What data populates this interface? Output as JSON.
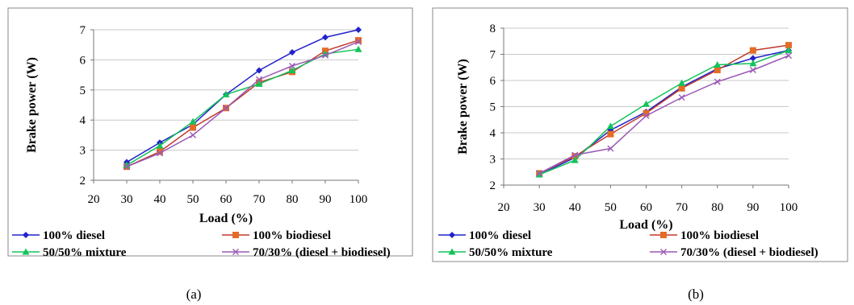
{
  "charts": [
    {
      "id": "a",
      "caption": "(a)",
      "chart_data": {
        "type": "line",
        "x": [
          30,
          40,
          50,
          60,
          70,
          80,
          90,
          100
        ],
        "xlim": [
          20,
          100
        ],
        "ylim": [
          2,
          7
        ],
        "xticks": [
          20,
          30,
          40,
          50,
          60,
          70,
          80,
          90,
          100
        ],
        "yticks": [
          2,
          3,
          4,
          5,
          6,
          7
        ],
        "xlabel": "Load (%)",
        "ylabel": "Brake power (W)",
        "grid": "horizontal",
        "legend": "bottom",
        "series": [
          {
            "name": "100% diesel",
            "color": "#2222cc",
            "marker": "diamond",
            "values": [
              2.6,
              3.25,
              3.85,
              4.85,
              5.65,
              6.25,
              6.75,
              7.0
            ]
          },
          {
            "name": "100% biodiesel",
            "color": "#e46c26",
            "line_color": "#c0392b",
            "marker": "square",
            "values": [
              2.45,
              2.95,
              3.75,
              4.4,
              5.25,
              5.6,
              6.3,
              6.65
            ]
          },
          {
            "name": "50/50% mixture",
            "color": "#12c35a",
            "marker": "triangle",
            "values": [
              2.5,
              3.15,
              3.95,
              4.85,
              5.2,
              5.65,
              6.2,
              6.35
            ]
          },
          {
            "name": "70/30% (diesel + biodiesel)",
            "color": "#9b59b6",
            "marker": "x",
            "values": [
              2.45,
              2.9,
              3.5,
              4.4,
              5.35,
              5.8,
              6.15,
              6.6
            ]
          }
        ]
      }
    },
    {
      "id": "b",
      "caption": "(b)",
      "chart_data": {
        "type": "line",
        "x": [
          30,
          40,
          50,
          60,
          70,
          80,
          90,
          100
        ],
        "xlim": [
          20,
          100
        ],
        "ylim": [
          2,
          8
        ],
        "xticks": [
          20,
          30,
          40,
          50,
          60,
          70,
          80,
          90,
          100
        ],
        "yticks": [
          2,
          3,
          4,
          5,
          6,
          7,
          8
        ],
        "xlabel": "Load (%)",
        "ylabel": "Brake power (W)",
        "grid": "horizontal",
        "legend": "bottom",
        "series": [
          {
            "name": "100% diesel",
            "color": "#2222cc",
            "marker": "diamond",
            "values": [
              2.4,
              3.05,
              4.1,
              4.8,
              5.75,
              6.45,
              6.85,
              7.15
            ]
          },
          {
            "name": "100% biodiesel",
            "color": "#e46c26",
            "line_color": "#c0392b",
            "marker": "square",
            "values": [
              2.45,
              3.1,
              3.95,
              4.75,
              5.7,
              6.4,
              7.15,
              7.35
            ]
          },
          {
            "name": "50/50% mixture",
            "color": "#12c35a",
            "marker": "triangle",
            "values": [
              2.4,
              2.95,
              4.25,
              5.1,
              5.9,
              6.6,
              6.65,
              7.15
            ]
          },
          {
            "name": "70/30% (diesel + biodiesel)",
            "color": "#9b59b6",
            "marker": "x",
            "values": [
              2.45,
              3.15,
              3.4,
              4.65,
              5.35,
              5.95,
              6.4,
              6.95
            ]
          }
        ]
      }
    }
  ]
}
